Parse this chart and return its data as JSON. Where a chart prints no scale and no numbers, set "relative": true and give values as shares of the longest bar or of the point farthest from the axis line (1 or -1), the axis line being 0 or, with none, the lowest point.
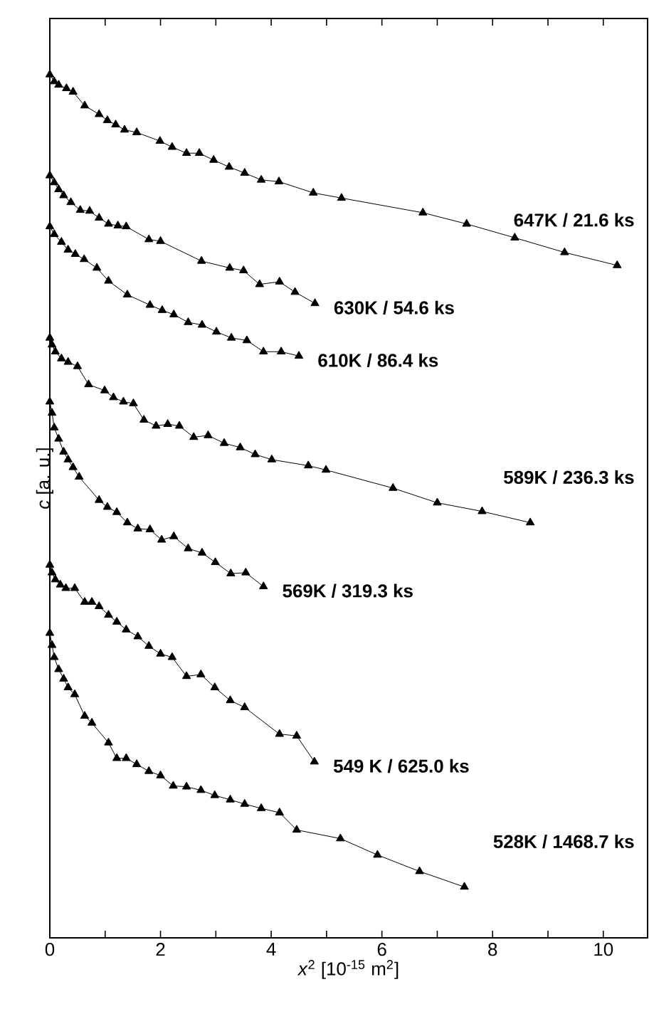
{
  "chart_data": {
    "type": "line",
    "xlabel": "*x*$^{2}$ [10$^{-15}$ m$^{2}$]",
    "ylabel": "*c* [a. u.]",
    "relative": true,
    "marker": "triangle",
    "line_style": "solid",
    "legend": false,
    "grid": false,
    "tick_labels": "x",
    "xlim": [
      0,
      10.8
    ],
    "xticks": [
      0,
      {
        "value": 1,
        "label": null
      },
      2,
      {
        "value": 3,
        "label": null
      },
      4,
      {
        "value": 5,
        "label": null
      },
      6,
      {
        "value": 7,
        "label": null
      },
      8,
      {
        "value": 9,
        "label": null
      },
      10
    ],
    "series": [
      {
        "name": "647K / 21.6 ks",
        "color": "#000000",
        "x": [
          0,
          0.08,
          0.16,
          0.3,
          0.42,
          0.63,
          0.89,
          1.04,
          1.19,
          1.35,
          1.57,
          1.99,
          2.21,
          2.47,
          2.7,
          2.96,
          3.24,
          3.52,
          3.82,
          4.14,
          4.76,
          5.27,
          6.74,
          7.53,
          8.4,
          9.3,
          10.25
        ],
        "values": [
          1.0,
          0.992,
          0.988,
          0.984,
          0.98,
          0.964,
          0.954,
          0.947,
          0.942,
          0.936,
          0.933,
          0.923,
          0.916,
          0.909,
          0.909,
          0.901,
          0.893,
          0.886,
          0.878,
          0.876,
          0.863,
          0.857,
          0.84,
          0.827,
          0.811,
          0.794,
          0.779
        ]
      },
      {
        "name": "630K / 54.6 ks",
        "color": "#000000",
        "x": [
          0,
          0.08,
          0.16,
          0.25,
          0.38,
          0.55,
          0.72,
          0.89,
          1.06,
          1.23,
          1.38,
          1.79,
          2.0,
          2.74,
          3.25,
          3.5,
          3.79,
          4.15,
          4.43,
          4.79
        ],
        "values": [
          0.883,
          0.875,
          0.867,
          0.86,
          0.852,
          0.843,
          0.842,
          0.834,
          0.827,
          0.825,
          0.824,
          0.809,
          0.807,
          0.784,
          0.776,
          0.773,
          0.757,
          0.76,
          0.748,
          0.735
        ]
      },
      {
        "name": "610K / 86.4 ks",
        "color": "#000000",
        "x": [
          0,
          0.08,
          0.21,
          0.33,
          0.46,
          0.62,
          0.85,
          1.06,
          1.4,
          1.81,
          2.03,
          2.24,
          2.5,
          2.75,
          3.01,
          3.28,
          3.56,
          3.86,
          4.18,
          4.5
        ],
        "values": [
          0.824,
          0.815,
          0.806,
          0.797,
          0.792,
          0.786,
          0.776,
          0.761,
          0.745,
          0.733,
          0.727,
          0.722,
          0.713,
          0.71,
          0.702,
          0.695,
          0.692,
          0.679,
          0.679,
          0.674
        ]
      },
      {
        "name": "589K / 236.3 ks",
        "color": "#000000",
        "x": [
          0,
          0.04,
          0.1,
          0.21,
          0.33,
          0.5,
          0.7,
          0.99,
          1.15,
          1.33,
          1.51,
          1.7,
          1.92,
          2.13,
          2.34,
          2.6,
          2.86,
          3.15,
          3.44,
          3.71,
          4.01,
          4.67,
          4.99,
          6.2,
          7.0,
          7.81,
          8.68
        ],
        "values": [
          0.695,
          0.687,
          0.679,
          0.671,
          0.667,
          0.662,
          0.641,
          0.634,
          0.626,
          0.621,
          0.619,
          0.6,
          0.593,
          0.595,
          0.593,
          0.58,
          0.582,
          0.573,
          0.568,
          0.56,
          0.554,
          0.547,
          0.542,
          0.521,
          0.504,
          0.494,
          0.481
        ]
      },
      {
        "name": "569K / 319.3 ks",
        "color": "#000000",
        "x": [
          0,
          0.04,
          0.08,
          0.16,
          0.25,
          0.33,
          0.42,
          0.53,
          0.89,
          1.04,
          1.21,
          1.4,
          1.59,
          1.81,
          2.02,
          2.24,
          2.5,
          2.75,
          2.99,
          3.27,
          3.54,
          3.86
        ],
        "values": [
          0.621,
          0.608,
          0.591,
          0.578,
          0.563,
          0.554,
          0.545,
          0.534,
          0.507,
          0.499,
          0.493,
          0.481,
          0.474,
          0.473,
          0.461,
          0.465,
          0.451,
          0.446,
          0.435,
          0.422,
          0.423,
          0.407
        ]
      },
      {
        "name": "549 K / 625.0 ks",
        "color": "#000000",
        "x": [
          0,
          0.04,
          0.1,
          0.19,
          0.29,
          0.45,
          0.63,
          0.76,
          0.89,
          1.06,
          1.21,
          1.38,
          1.59,
          1.79,
          2.0,
          2.21,
          2.47,
          2.73,
          2.98,
          3.26,
          3.52,
          4.15,
          4.46,
          4.78
        ],
        "values": [
          0.432,
          0.423,
          0.415,
          0.409,
          0.405,
          0.405,
          0.389,
          0.389,
          0.384,
          0.374,
          0.366,
          0.357,
          0.349,
          0.338,
          0.329,
          0.325,
          0.303,
          0.305,
          0.29,
          0.275,
          0.267,
          0.236,
          0.234,
          0.204
        ]
      },
      {
        "name": "528K / 1468.7 ks",
        "color": "#000000",
        "x": [
          0,
          0.04,
          0.08,
          0.16,
          0.25,
          0.33,
          0.45,
          0.63,
          0.76,
          1.06,
          1.21,
          1.38,
          1.57,
          1.79,
          2.0,
          2.23,
          2.47,
          2.73,
          2.98,
          3.26,
          3.52,
          3.82,
          4.15,
          4.46,
          5.25,
          5.92,
          6.68,
          7.49
        ],
        "values": [
          0.353,
          0.339,
          0.325,
          0.311,
          0.3,
          0.29,
          0.282,
          0.257,
          0.249,
          0.226,
          0.208,
          0.208,
          0.201,
          0.193,
          0.188,
          0.176,
          0.175,
          0.171,
          0.165,
          0.16,
          0.155,
          0.15,
          0.145,
          0.125,
          0.115,
          0.096,
          0.077,
          0.059
        ]
      }
    ]
  }
}
